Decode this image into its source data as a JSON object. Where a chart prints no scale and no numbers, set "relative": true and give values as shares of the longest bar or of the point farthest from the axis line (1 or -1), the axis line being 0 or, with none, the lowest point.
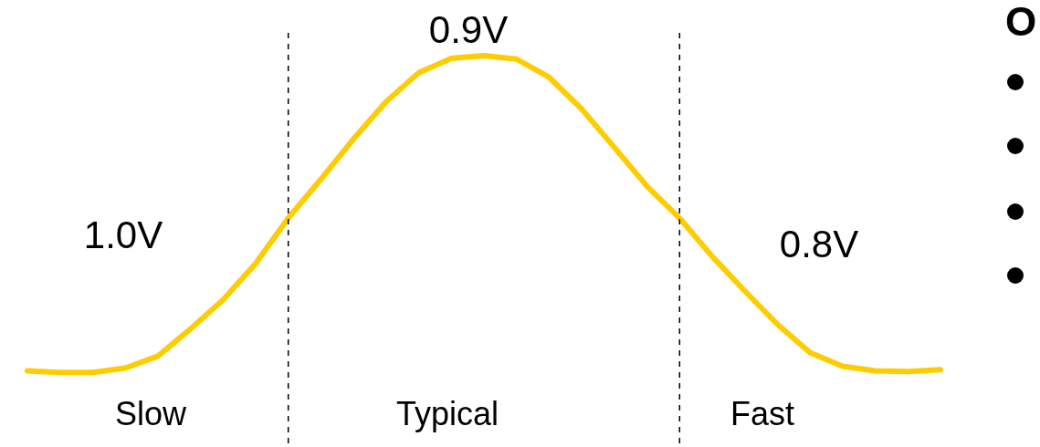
{
  "chart_data": {
    "type": "line",
    "relative": true,
    "marker": "none",
    "line_style": "solid",
    "categories": [
      null,
      null,
      null,
      null,
      null,
      null,
      null,
      null,
      null,
      null,
      null,
      null,
      null,
      null,
      null,
      null,
      null,
      null,
      null,
      null,
      null,
      null,
      null,
      null,
      null,
      null,
      null,
      null,
      null
    ],
    "series": [
      {
        "color": "#ffcc00",
        "values": [
          0.187,
          0.183,
          0.183,
          0.194,
          0.225,
          0.295,
          0.37,
          0.464,
          0.581,
          0.681,
          0.785,
          0.881,
          0.956,
          0.993,
          1,
          0.991,
          0.944,
          0.862,
          0.763,
          0.663,
          0.581,
          0.482,
          0.393,
          0.307,
          0.234,
          0.199,
          0.187,
          0.185,
          0.19
        ]
      }
    ],
    "ref_lines": [
      {
        "axis": "x",
        "color": "#000000",
        "line_style": "dashed"
      },
      {
        "axis": "x",
        "color": "#000000",
        "line_style": "dashed"
      }
    ],
    "annotations": [
      "1.0V",
      "0.9V",
      "0.8V",
      "Slow",
      "Typical",
      "Fast",
      "O"
    ]
  }
}
